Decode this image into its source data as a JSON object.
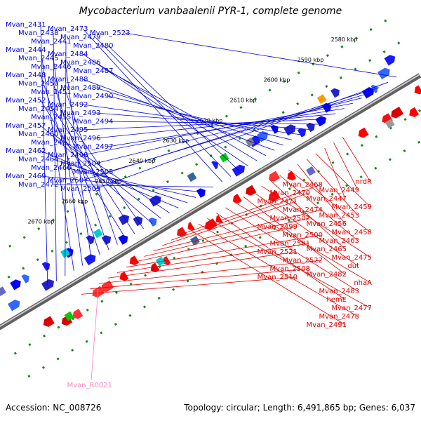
{
  "title": "Mycobacterium vanbaalenii PYR-1, complete genome",
  "footer": {
    "accession": "Accession: NC_008726",
    "summary": "Topology: circular; Length: 6,491,865 bp; Genes: 6,037"
  },
  "colors": {
    "forward_label": "#0000e0",
    "reverse_label": "#e00000",
    "rna_label": "#ff80c0",
    "backbone": "#909090",
    "tick": "#1a8a1a"
  },
  "ticks": [
    "2580 kbp",
    "2590 kbp",
    "2600 kbp",
    "2610 kbp",
    "2620 kbp",
    "2630 kbp",
    "2640 kbp",
    "2650 kbp",
    "2660 kbp",
    "2670 kbp"
  ],
  "forward_genes": [
    "Mvan_2431",
    "Mvan_2438",
    "Mvan_2441",
    "Mvan_2444",
    "Mvan_2445",
    "Mvan_2446",
    "Mvan_2448",
    "Mvan_2450",
    "Mvan_2451",
    "Mvan_2452",
    "Mvan_2454",
    "Mvan_2455",
    "Mvan_2457",
    "Mvan_2460",
    "Mvan_2461",
    "Mvan_2462",
    "Mvan_2464",
    "Mvan_2466",
    "Mvan_2469",
    "Mvan_2472",
    "Mvan_2473",
    "Mvan_2479",
    "Mvan_2480",
    "Mvan_2484",
    "Mvan_2486",
    "Mvan_2487",
    "Mvan_2488",
    "Mvan_2489",
    "Mvan_2490",
    "Mvan_2492",
    "Mvan_2493",
    "Mvan_2494",
    "Mvan_2495",
    "Mvan_2496",
    "Mvan_2497",
    "Mvan_2498",
    "Mvan_2504",
    "Mvan_2505",
    "Mvan_2507",
    "Mvan_2509",
    "Mvan_2523"
  ],
  "reverse_genes": [
    "nrdR",
    "Mvan_2449",
    "Mvan_2447",
    "Mvan_2459",
    "Mvan_2453",
    "Mvan_2456",
    "Mvan_2458",
    "Mvan_2463",
    "Mvan_2465",
    "Mvan_2475",
    "dut",
    "Mvan_2482",
    "nhaA",
    "Mvan_2483",
    "hemE",
    "Mvan_2477",
    "Mvan_2478",
    "Mvan_2491",
    "Mvan_2468",
    "Mvan_2470",
    "Mvan_2471",
    "Mvan_2474",
    "Mvan_2502",
    "Mvan_2499",
    "Mvan_2500",
    "Mvan_2501",
    "Mvan_2521",
    "Mvan_2522",
    "Mvan_2508",
    "Mvan_2510"
  ],
  "rna_genes": [
    "Mvan_R0021"
  ]
}
